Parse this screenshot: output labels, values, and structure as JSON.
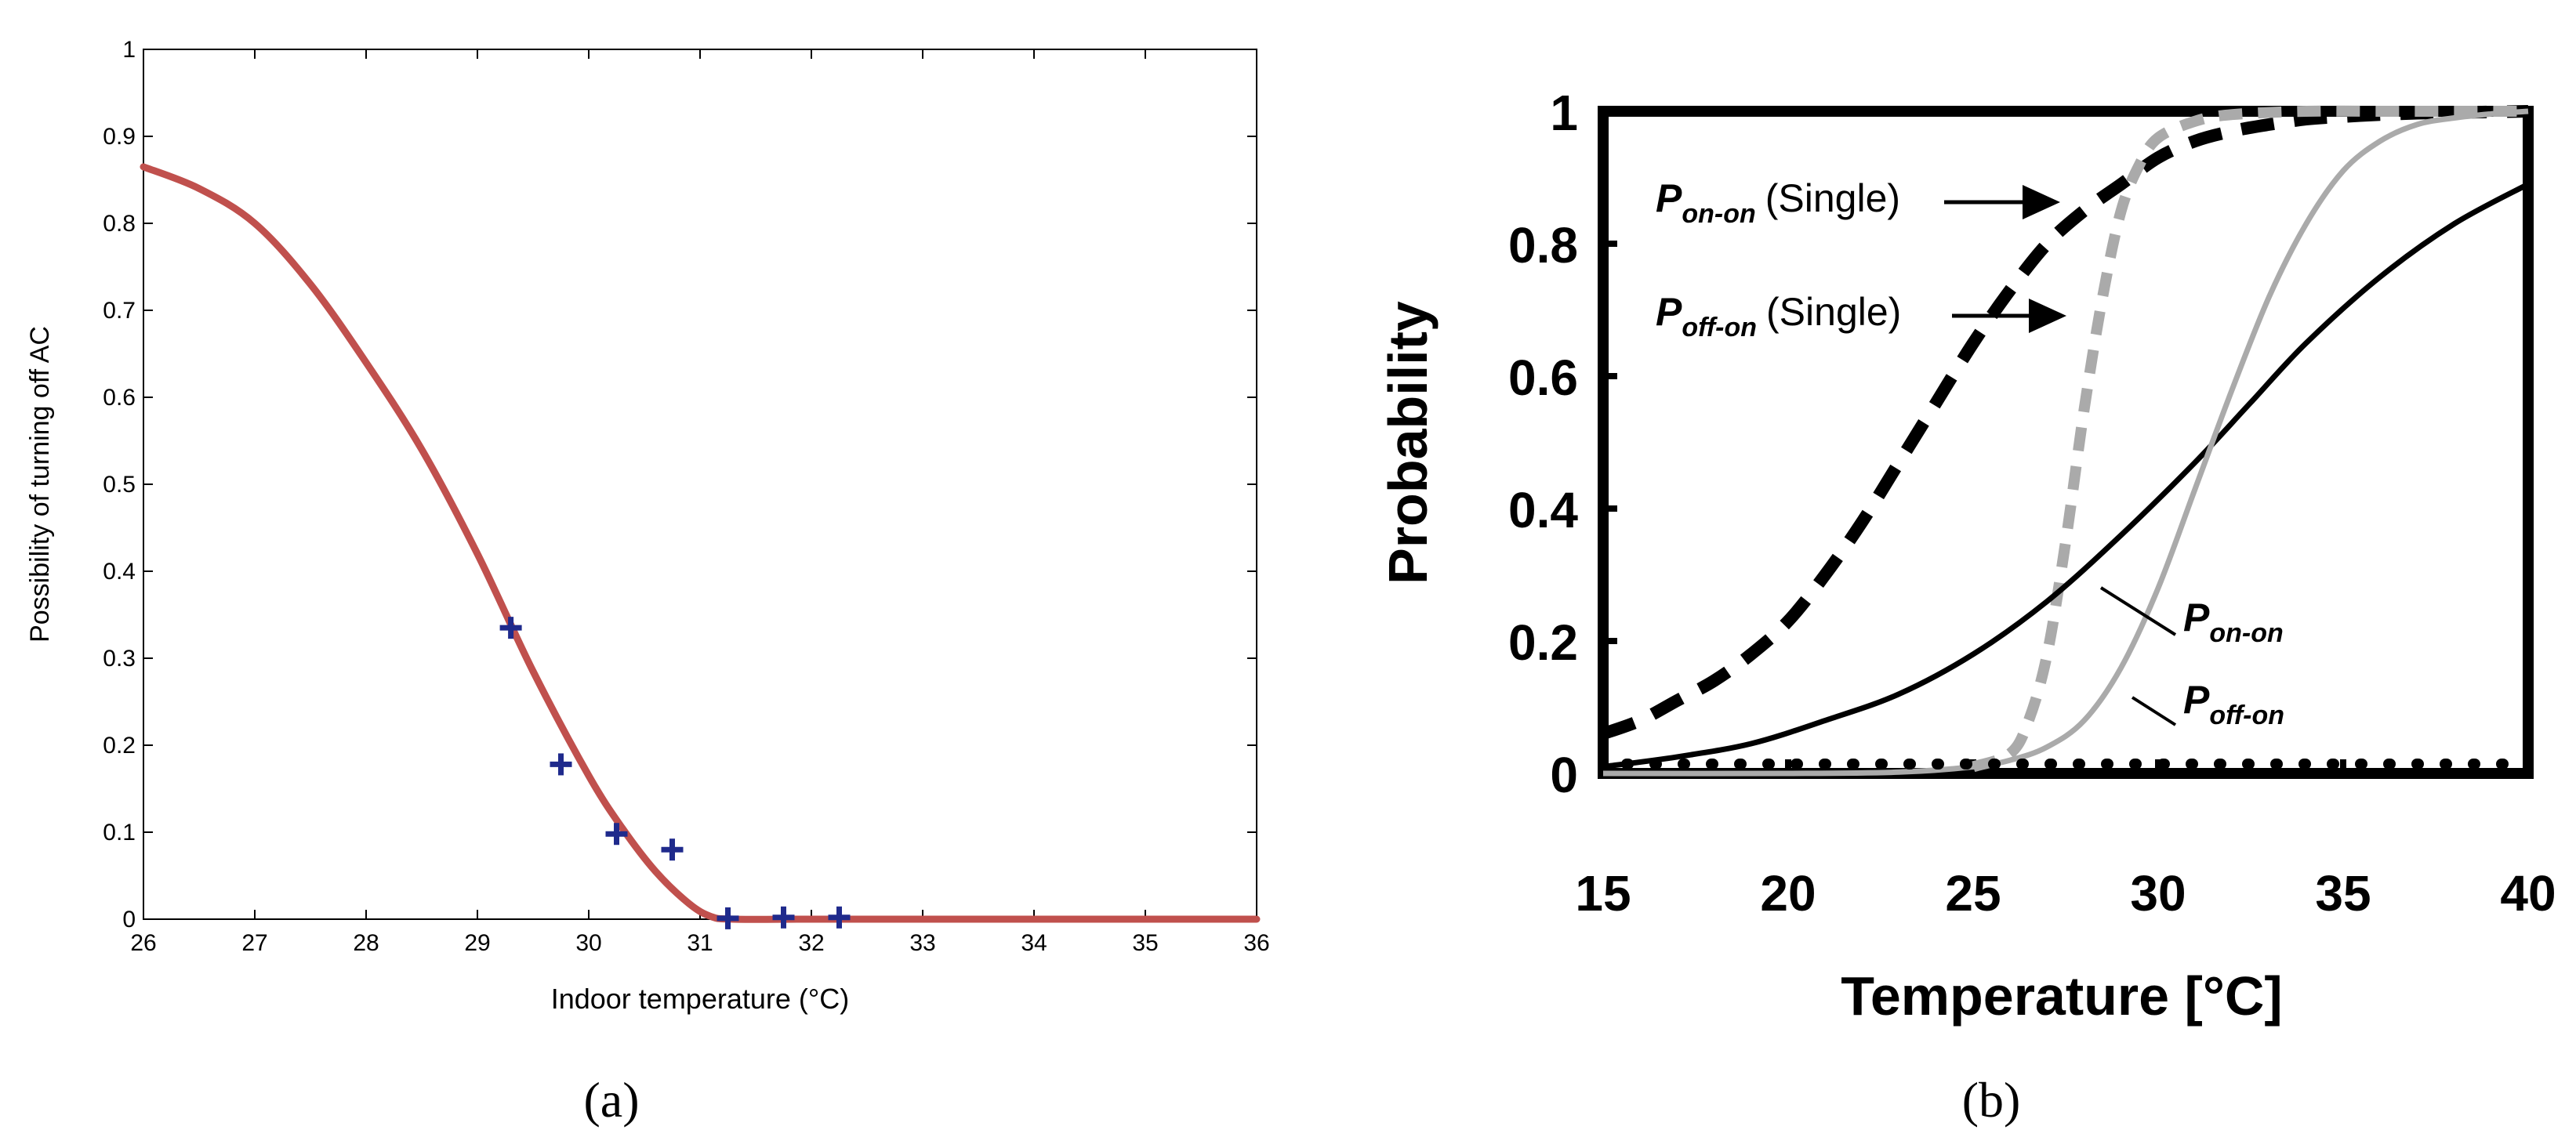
{
  "chart_data": [
    {
      "panel_label": "(a)",
      "type": "line",
      "xlabel": "Indoor temperature (°C)",
      "ylabel": "Possibility of turning off AC",
      "xlim": [
        26,
        36
      ],
      "ylim": [
        0,
        1
      ],
      "xticks": [
        "26",
        "27",
        "28",
        "29",
        "30",
        "31",
        "32",
        "33",
        "34",
        "35",
        "36"
      ],
      "yticks": [
        "0",
        "0.1",
        "0.2",
        "0.3",
        "0.4",
        "0.5",
        "0.6",
        "0.7",
        "0.8",
        "0.9",
        "1"
      ],
      "grid": false,
      "colors": {
        "curve": "#c0504d",
        "markers": "#1f2a8c"
      },
      "series": [
        {
          "type": "line",
          "x": [
            26,
            26.5,
            27,
            27.5,
            28,
            28.5,
            29,
            29.5,
            30,
            30.3,
            30.6,
            30.9,
            31.1,
            31.3,
            32,
            33,
            34,
            35,
            36
          ],
          "y": [
            0.865,
            0.84,
            0.8,
            0.73,
            0.64,
            0.54,
            0.42,
            0.285,
            0.165,
            0.105,
            0.055,
            0.018,
            0.003,
            0,
            0,
            0,
            0,
            0,
            0
          ]
        },
        {
          "type": "scatter",
          "x": [
            29.3,
            29.75,
            30.25,
            30.75,
            31.25,
            31.75,
            32.25
          ],
          "y": [
            0.335,
            0.178,
            0.098,
            0.08,
            0.001,
            0.002,
            0.002
          ]
        }
      ]
    },
    {
      "panel_label": "(b)",
      "type": "line",
      "xlabel": "Temperature [°C]",
      "ylabel": "Probability",
      "xlim": [
        15,
        40
      ],
      "ylim": [
        0,
        1
      ],
      "xticks": [
        "15",
        "20",
        "25",
        "30",
        "35",
        "40"
      ],
      "yticks": [
        "0",
        "0.2",
        "0.4",
        "0.6",
        "0.8",
        "1"
      ],
      "grid": false,
      "colors": {
        "black": "#000000",
        "gray": "#aaaaaa"
      },
      "series": [
        {
          "style": "black-dashed",
          "x": [
            15,
            16,
            17,
            18,
            19,
            20,
            21,
            22,
            23,
            24,
            25,
            26,
            27,
            28,
            29,
            30,
            31,
            32,
            33,
            34,
            35,
            36,
            37,
            38,
            39,
            40
          ],
          "y": [
            0.06,
            0.08,
            0.11,
            0.14,
            0.18,
            0.23,
            0.3,
            0.38,
            0.47,
            0.56,
            0.65,
            0.73,
            0.8,
            0.85,
            0.89,
            0.93,
            0.955,
            0.97,
            0.98,
            0.988,
            0.992,
            0.995,
            0.997,
            0.998,
            0.999,
            1.0
          ]
        },
        {
          "style": "gray-dashed",
          "x": [
            25,
            26,
            26.5,
            27,
            27.5,
            28,
            28.5,
            29,
            29.5,
            30,
            31,
            32,
            34,
            36,
            38,
            40
          ],
          "y": [
            0.01,
            0.03,
            0.08,
            0.18,
            0.35,
            0.55,
            0.72,
            0.85,
            0.92,
            0.96,
            0.985,
            0.995,
            1.0,
            1.0,
            1.0,
            1.0
          ]
        },
        {
          "style": "black-solid",
          "x": [
            15,
            17,
            19,
            21,
            23,
            25,
            27,
            29,
            31,
            32.5,
            34,
            36,
            38,
            40
          ],
          "y": [
            0.01,
            0.025,
            0.045,
            0.08,
            0.12,
            0.18,
            0.26,
            0.36,
            0.47,
            0.56,
            0.65,
            0.75,
            0.83,
            0.89
          ]
        },
        {
          "style": "gray-solid",
          "x": [
            15,
            20,
            23,
            25,
            26,
            27,
            28,
            29,
            30,
            31,
            32,
            33,
            34,
            35,
            36,
            37,
            38,
            39,
            40
          ],
          "y": [
            0,
            0,
            0.002,
            0.01,
            0.02,
            0.04,
            0.08,
            0.16,
            0.28,
            0.43,
            0.58,
            0.72,
            0.83,
            0.91,
            0.955,
            0.98,
            0.99,
            0.996,
            1.0
          ]
        },
        {
          "style": "black-dotted",
          "x": [
            15,
            40
          ],
          "y": [
            0,
            0
          ]
        }
      ],
      "annotations": [
        {
          "text_main": "P",
          "text_sub": "on-on",
          "text_suffix": "(Single)"
        },
        {
          "text_main": "P",
          "text_sub": "off-on",
          "text_suffix": "(Single)"
        },
        {
          "text_main": "P",
          "text_sub": "on-on",
          "text_suffix": ""
        },
        {
          "text_main": "P",
          "text_sub": "off-on",
          "text_suffix": ""
        }
      ]
    }
  ]
}
